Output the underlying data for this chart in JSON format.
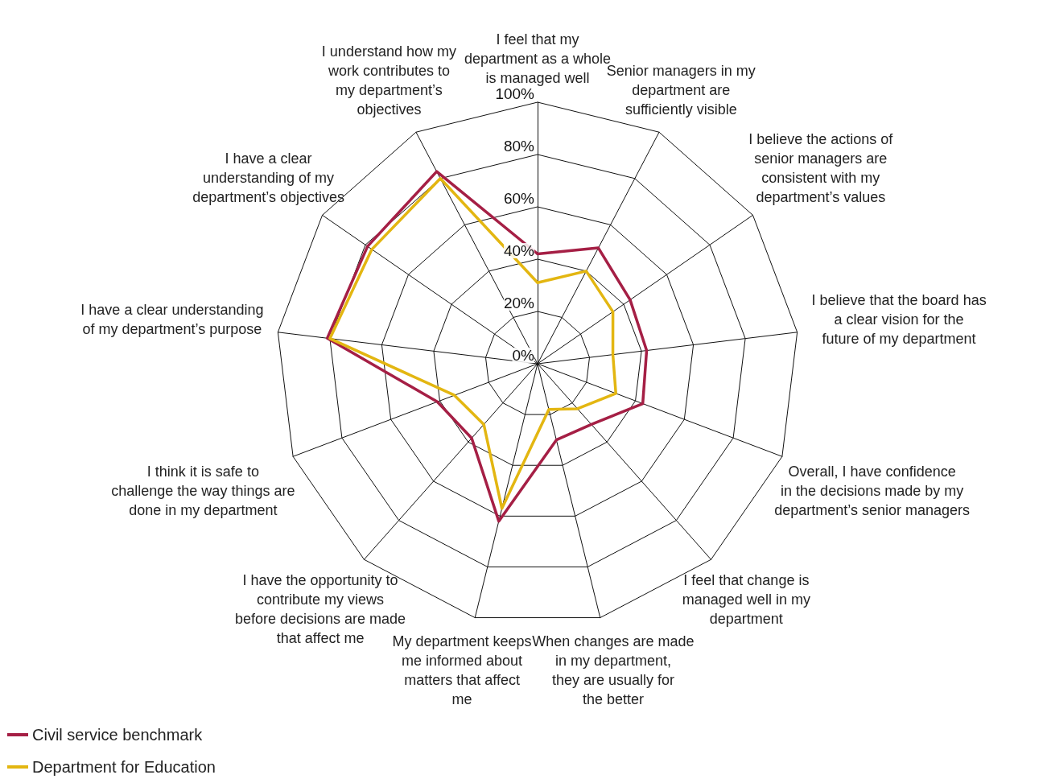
{
  "chart_data": {
    "type": "radar",
    "categories": [
      "I feel that my department as a whole is managed well",
      "Senior managers in my department are sufficiently visible",
      "I believe the actions of senior managers are consistent with my department’s values",
      "I believe that the board has a clear vision for the future of my department",
      "Overall, I have confidence in the decisions made by my department’s senior managers",
      "I feel that change is managed well in my department",
      "When changes are made in my department, they are usually for the better",
      "My department keeps me informed about matters that affect me",
      "I have the opportunity to contribute my views before decisions are made that affect me",
      "I think it is safe to challenge the way things are done in my department",
      "I have a clear understanding of my department’s purpose",
      "I have a clear understanding of my department’s objectives",
      "I understand how my work contributes to my department’s objectives"
    ],
    "series": [
      {
        "name": "Civil service benchmark",
        "color": "#a51f45",
        "values": [
          42,
          50,
          43,
          42,
          43,
          31,
          30,
          62,
          38,
          41,
          81,
          79,
          83
        ]
      },
      {
        "name": "Department for Education",
        "color": "#e3b611",
        "values": [
          31,
          40,
          35,
          29,
          32,
          23,
          18,
          57,
          31,
          34,
          80,
          77,
          80
        ]
      }
    ],
    "ylim": [
      0,
      100
    ],
    "yticks": [
      {
        "value": 0,
        "label": "0%"
      },
      {
        "value": 20,
        "label": "20%"
      },
      {
        "value": 40,
        "label": "40%"
      },
      {
        "value": 60,
        "label": "60%"
      },
      {
        "value": 80,
        "label": "80%"
      },
      {
        "value": 100,
        "label": "100%"
      }
    ],
    "grid": true,
    "legend": "bottom left",
    "marker": "none",
    "line_style": "solid"
  }
}
